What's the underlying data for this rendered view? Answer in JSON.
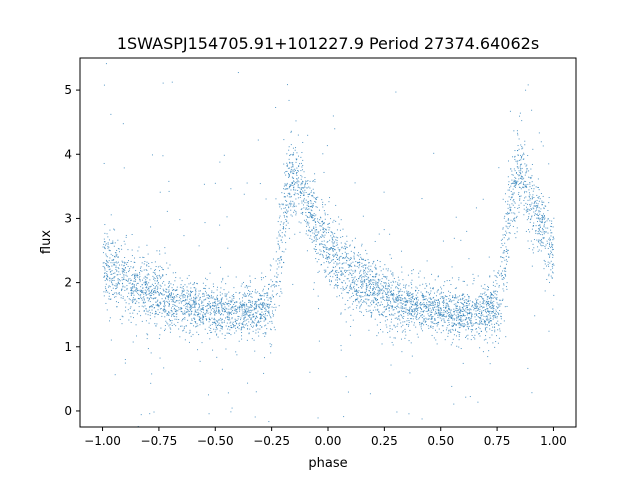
{
  "chart_data": {
    "type": "scatter",
    "title": "1SWASPJ154705.91+101227.9 Period 27374.64062s",
    "xlabel": "phase",
    "ylabel": "flux",
    "xlim": [
      -1.1,
      1.1
    ],
    "ylim": [
      -0.25,
      5.5
    ],
    "x_ticks": [
      -1.0,
      -0.75,
      -0.5,
      -0.25,
      0.0,
      0.25,
      0.5,
      0.75,
      1.0
    ],
    "x_tick_labels": [
      "−1.00",
      "−0.75",
      "−0.50",
      "−0.25",
      "0.00",
      "0.25",
      "0.50",
      "0.75",
      "1.00"
    ],
    "y_ticks": [
      0,
      1,
      2,
      3,
      4,
      5
    ],
    "y_tick_labels": [
      "0",
      "1",
      "2",
      "3",
      "4",
      "5"
    ],
    "grid": false,
    "marker_color": "#1f77b4",
    "series": [
      {
        "x_range": [
          -1.0,
          1.0
        ],
        "x": [
          -1.0,
          -0.98,
          -0.95,
          -0.9,
          -0.8,
          -0.7,
          -0.6,
          -0.5,
          -0.4,
          -0.3,
          -0.25,
          -0.22,
          -0.19,
          -0.16,
          -0.14,
          -0.12,
          -0.1,
          -0.05,
          0.0,
          0.05,
          0.1,
          0.2,
          0.3,
          0.4,
          0.5,
          0.6,
          0.7,
          0.75,
          0.78,
          0.81,
          0.84,
          0.86,
          0.88,
          0.9,
          0.95,
          1.0
        ],
        "y_center": [
          2.35,
          2.25,
          2.15,
          2.05,
          1.85,
          1.72,
          1.62,
          1.57,
          1.53,
          1.55,
          1.68,
          2.25,
          3.3,
          3.7,
          3.65,
          3.5,
          3.2,
          2.85,
          2.5,
          2.3,
          2.1,
          1.9,
          1.72,
          1.62,
          1.57,
          1.53,
          1.55,
          1.68,
          2.25,
          3.3,
          3.7,
          3.65,
          3.5,
          3.2,
          2.85,
          2.35
        ],
        "y_spread": [
          0.28,
          0.28,
          0.28,
          0.27,
          0.24,
          0.22,
          0.2,
          0.19,
          0.19,
          0.2,
          0.28,
          0.45,
          0.35,
          0.32,
          0.32,
          0.3,
          0.3,
          0.3,
          0.28,
          0.28,
          0.28,
          0.24,
          0.22,
          0.2,
          0.19,
          0.19,
          0.2,
          0.28,
          0.45,
          0.35,
          0.32,
          0.32,
          0.3,
          0.3,
          0.3,
          0.28
        ]
      }
    ]
  }
}
